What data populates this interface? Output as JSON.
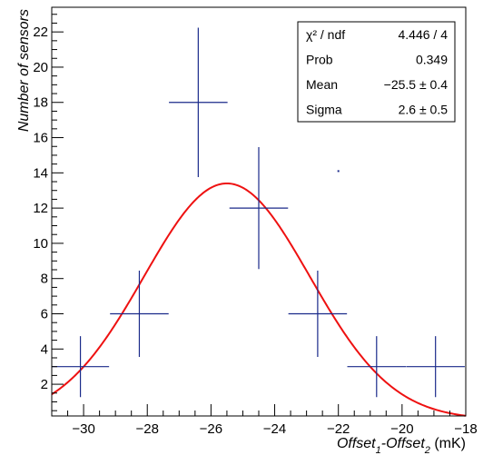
{
  "chart_data": {
    "type": "scatter",
    "title": "",
    "xlabel": {
      "parts": [
        {
          "text": "Offset",
          "style": "italic"
        },
        {
          "text": "1",
          "style": "italic-sub"
        },
        {
          "text": "-Offset",
          "style": "italic"
        },
        {
          "text": "2",
          "style": "italic-sub"
        },
        {
          "text": " (mK)",
          "style": "normal"
        }
      ]
    },
    "ylabel": "Number of sensors",
    "xlim": [
      -31,
      -18
    ],
    "ylim": [
      0.2,
      23.4
    ],
    "xticks": [
      -30,
      -28,
      -26,
      -24,
      -22,
      -20,
      -18
    ],
    "yticks": [
      2,
      4,
      6,
      8,
      10,
      12,
      14,
      16,
      18,
      20,
      22
    ],
    "grid": false,
    "series": [
      {
        "kind": "histogram-points",
        "color": "#1a2a8a",
        "points": [
          {
            "x": -30.1,
            "y": 3,
            "xerr": 0.9,
            "yerr": 1.73
          },
          {
            "x": -28.25,
            "y": 6,
            "xerr": 0.92,
            "yerr": 2.45
          },
          {
            "x": -26.4,
            "y": 18,
            "xerr": 0.92,
            "yerr": 4.24
          },
          {
            "x": -24.5,
            "y": 12,
            "xerr": 0.92,
            "yerr": 3.46
          },
          {
            "x": -22.65,
            "y": 6,
            "xerr": 0.92,
            "yerr": 2.45
          },
          {
            "x": -20.8,
            "y": 3,
            "xerr": 0.92,
            "yerr": 1.73
          },
          {
            "x": -18.95,
            "y": 3,
            "xerr": 0.92,
            "yerr": 1.73
          }
        ],
        "stray_points": [
          {
            "x": -22.0,
            "y": 14.1
          }
        ]
      },
      {
        "kind": "gaussian-fit",
        "color": "#ee1111",
        "amplitude": 13.4,
        "mean": -25.5,
        "sigma": 2.6
      }
    ],
    "stats_box": {
      "placement": "top-right",
      "rows": [
        {
          "label": "χ² / ndf",
          "value": "4.446 / 4"
        },
        {
          "label": "Prob",
          "value": "0.349"
        },
        {
          "label": "Mean",
          "value": "−25.5 ± 0.4"
        },
        {
          "label": "Sigma",
          "value": "2.6 ± 0.5"
        }
      ]
    }
  }
}
